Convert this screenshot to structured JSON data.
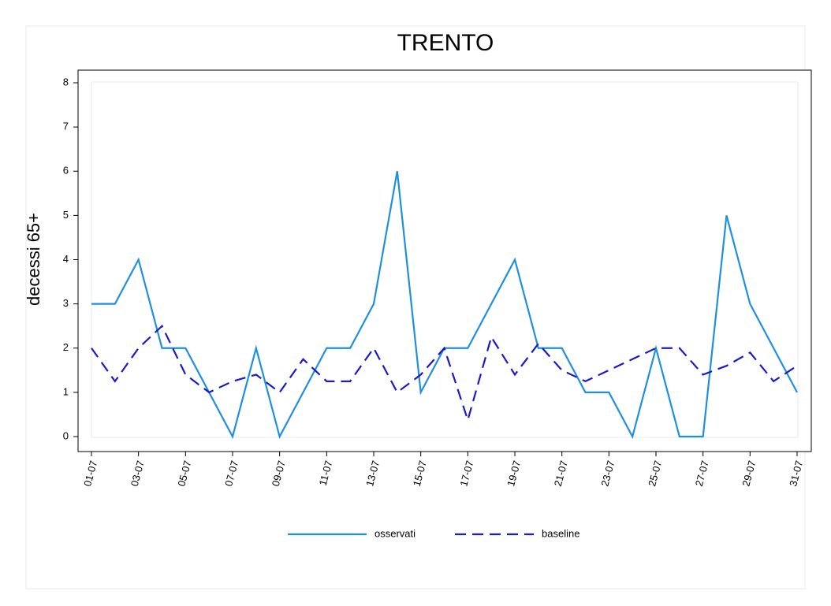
{
  "chart_data": {
    "type": "line",
    "title": "TRENTO",
    "y_label": "decessi 65+",
    "categories": [
      "01-07",
      null,
      "03-07",
      null,
      "05-07",
      null,
      "07-07",
      null,
      "09-07",
      null,
      "11-07",
      null,
      "13-07",
      null,
      "15-07",
      null,
      "17-07",
      null,
      "19-07",
      null,
      "21-07",
      null,
      "23-07",
      null,
      "25-07",
      null,
      "27-07",
      null,
      "29-07",
      null,
      "31-07"
    ],
    "series": [
      {
        "name": "osservati",
        "color": "#1f8fe0",
        "dash": "solid",
        "values": [
          3,
          3,
          4,
          2,
          2,
          1,
          0,
          2,
          0,
          1,
          2,
          2,
          3,
          6,
          1,
          2,
          2,
          3,
          4,
          2,
          2,
          1,
          1,
          0,
          2,
          0,
          0,
          5,
          3,
          2,
          1
        ]
      },
      {
        "name": "baseline",
        "color": "#1a1ac8",
        "dash": "dashed",
        "values": [
          2,
          1.25,
          2,
          2.5,
          1.4,
          1,
          1.25,
          1.4,
          1,
          1.75,
          1.25,
          1.25,
          2,
          1,
          1.4,
          2,
          0.375,
          2.25,
          1.4,
          2.1,
          1.5,
          1.25,
          1.5,
          1.75,
          2,
          2,
          1.4,
          1.6,
          1.9,
          1.25,
          1.6
        ]
      }
    ],
    "ylim": [
      0,
      8
    ],
    "yticks": [
      0,
      1,
      2,
      3,
      4,
      5,
      6,
      7,
      8
    ],
    "legend": "bottom"
  }
}
